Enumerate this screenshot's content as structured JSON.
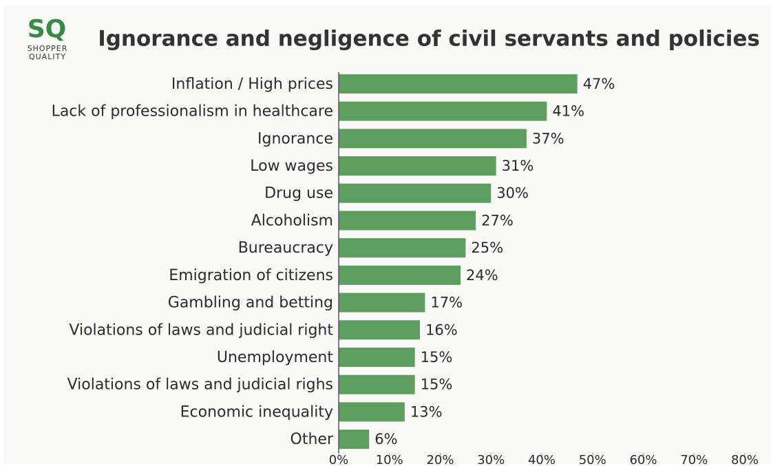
{
  "logo": {
    "mark": "SQ",
    "line1": "SHOPPER",
    "line2": "QUALITY"
  },
  "chart_data": {
    "type": "hbar",
    "title": "Ignorance and negligence of civil servants and policies",
    "categories": [
      "Inflation / High prices",
      "Lack of professionalism in healthcare",
      "Ignorance",
      "Low wages",
      "Drug use",
      "Alcoholism",
      "Bureaucracy",
      "Emigration of citizens",
      "Gambling and betting",
      "Violations of laws and judicial right",
      "Unemployment",
      "Violations of laws and judicial righs",
      "Economic inequality",
      "Other"
    ],
    "values": [
      47,
      41,
      37,
      31,
      30,
      27,
      25,
      24,
      17,
      16,
      15,
      15,
      13,
      6
    ],
    "value_labels": [
      "47%",
      "41%",
      "37%",
      "31%",
      "30%",
      "27%",
      "25%",
      "24%",
      "17%",
      "16%",
      "15%",
      "15%",
      "13%",
      "6%"
    ],
    "color": "#5e9e5f",
    "xlim": [
      0,
      80
    ],
    "xticks": [
      {
        "value": 0,
        "label": "0%"
      },
      {
        "value": 10,
        "label": "10%"
      },
      {
        "value": 20,
        "label": "20%"
      },
      {
        "value": 30,
        "label": "30%"
      },
      {
        "value": 40,
        "label": "40%"
      },
      {
        "value": 50,
        "label": "50%"
      },
      {
        "value": 60,
        "label": "60%"
      },
      {
        "value": 70,
        "label": "70%"
      },
      {
        "value": 80,
        "label": "80%"
      }
    ],
    "grid": false
  }
}
